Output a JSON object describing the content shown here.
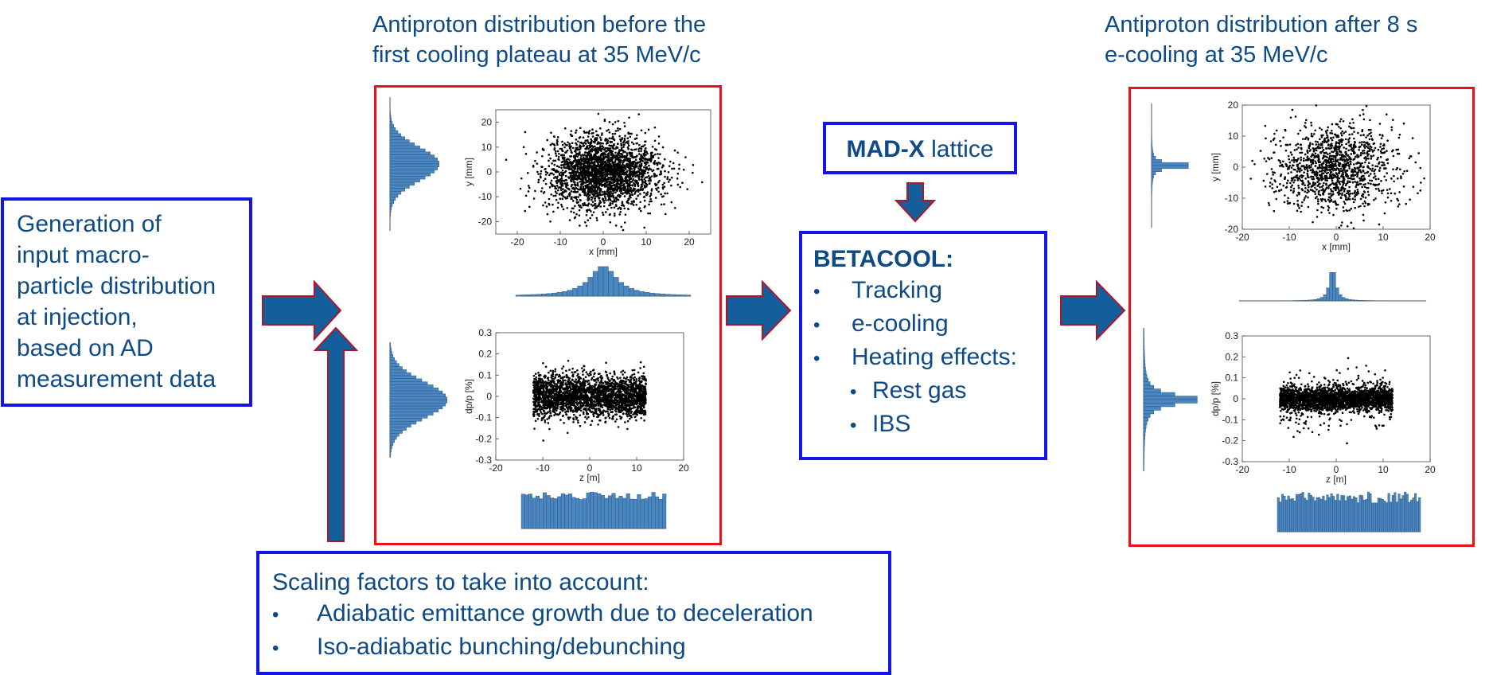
{
  "colors": {
    "text": "#0d4a86",
    "blue_border": "#1414e6",
    "red_border": "#e8111a",
    "arrow_fill": "#155e9c",
    "arrow_edge": "#b0152a",
    "hist": "#4a86c0"
  },
  "left_title": [
    "Antiproton distribution before the",
    "first cooling plateau at 35 MeV/c"
  ],
  "right_title": [
    "Antiproton distribution after 8 s",
    "e-cooling at 35 MeV/c"
  ],
  "generation_box": [
    "Generation of",
    "input macro-",
    "particle distribution",
    "at injection,",
    "based on AD",
    "measurement data"
  ],
  "madx_box": {
    "bold": "MAD-X",
    "rest": " lattice"
  },
  "betacool_box": {
    "title": "BETACOOL:",
    "items": [
      "Tracking",
      "e-cooling",
      "Heating effects:"
    ],
    "subitems": [
      "Rest gas",
      "IBS"
    ]
  },
  "scaling_box": {
    "title": "Scaling factors to take into account:",
    "items": [
      "Adiabatic emittance growth due to deceleration",
      "Iso-adiabatic bunching/debunching"
    ]
  },
  "bullet": "•",
  "plots": {
    "before_xy": {
      "xlabel": "x [mm]",
      "ylabel": "y [mm]",
      "xticks": [
        "-20",
        "-10",
        "0",
        "10",
        "20"
      ],
      "yticks": [
        "20",
        "10",
        "0",
        "-10",
        "-20"
      ]
    },
    "before_z": {
      "xlabel": "z [m]",
      "ylabel": "dp/p [%]",
      "xticks": [
        "-20",
        "-10",
        "0",
        "10",
        "20"
      ],
      "yticks": [
        "0.3",
        "0.2",
        "0.1",
        "0",
        "-0.1",
        "-0.2",
        "-0.3"
      ]
    },
    "after_xy": {
      "xlabel": "x [mm]",
      "ylabel": "y [mm]",
      "xticks": [
        "-20",
        "-10",
        "0",
        "10",
        "20"
      ],
      "yticks": [
        "20",
        "10",
        "0",
        "-10",
        "-20"
      ]
    },
    "after_z": {
      "xlabel": "z [m]",
      "ylabel": "dp/p [%]",
      "xticks": [
        "-20",
        "-10",
        "0",
        "10",
        "20"
      ],
      "yticks": [
        "0.3",
        "0.2",
        "0.1",
        "0",
        "-0.1",
        "-0.2",
        "-0.3"
      ]
    }
  }
}
